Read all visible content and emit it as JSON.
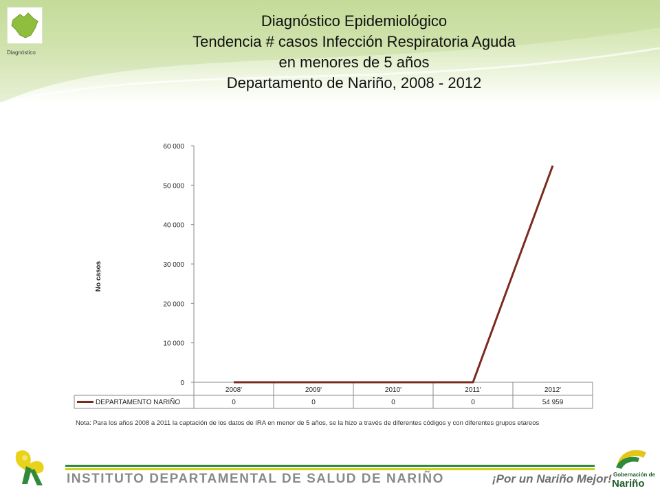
{
  "header": {
    "logo_caption": "Diagnóstico",
    "title_lines": [
      "Diagnóstico Epidemiológico",
      "Tendencia # casos Infección Respiratoria Aguda",
      "en menores de 5 años",
      "Departamento de Nariño,  2008 - 2012"
    ]
  },
  "chart_data": {
    "type": "line",
    "categories": [
      "2008",
      "2009",
      "2010",
      "2011",
      "2012"
    ],
    "series": [
      {
        "name": "DEPARTAMENTO NARIÑO",
        "values": [
          0,
          0,
          0,
          0,
          54959
        ],
        "color": "#7b2a1e"
      }
    ],
    "ylabel": "No casos",
    "ylim": [
      0,
      60000
    ],
    "yticks": [
      0,
      10000,
      20000,
      30000,
      40000,
      50000,
      60000
    ],
    "ytick_labels": [
      "0",
      "10 000",
      "20 000",
      "30 000",
      "40 000",
      "50 000",
      "60 000"
    ],
    "category_labels": [
      "2008'",
      "2009'",
      "2010'",
      "2011'",
      "2012'"
    ],
    "data_table": {
      "series_label": "DEPARTAMENTO NARIÑO",
      "cells": [
        "0",
        "0",
        "0",
        "0",
        "54 959"
      ]
    },
    "grid": false,
    "legend": "data-table"
  },
  "note": "Nota: Para los años 2008 a 2011 la captación de los datos de IRA en menor de 5 años, se la hizo a través de diferentes códigos y con diferentes grupos etareos",
  "footer": {
    "institute": "INSTITUTO DEPARTAMENTAL DE SALUD DE NARIÑO",
    "slogan": "¡Por un Nariño Mejor!",
    "gob_line1": "Gobernación de",
    "gob_line2": "Nariño"
  },
  "colors": {
    "header_green": "#c9dfa2",
    "footer_green": "#2f8a3a",
    "footer_yellow": "#c9d21e",
    "series_line": "#7b2a1e"
  }
}
